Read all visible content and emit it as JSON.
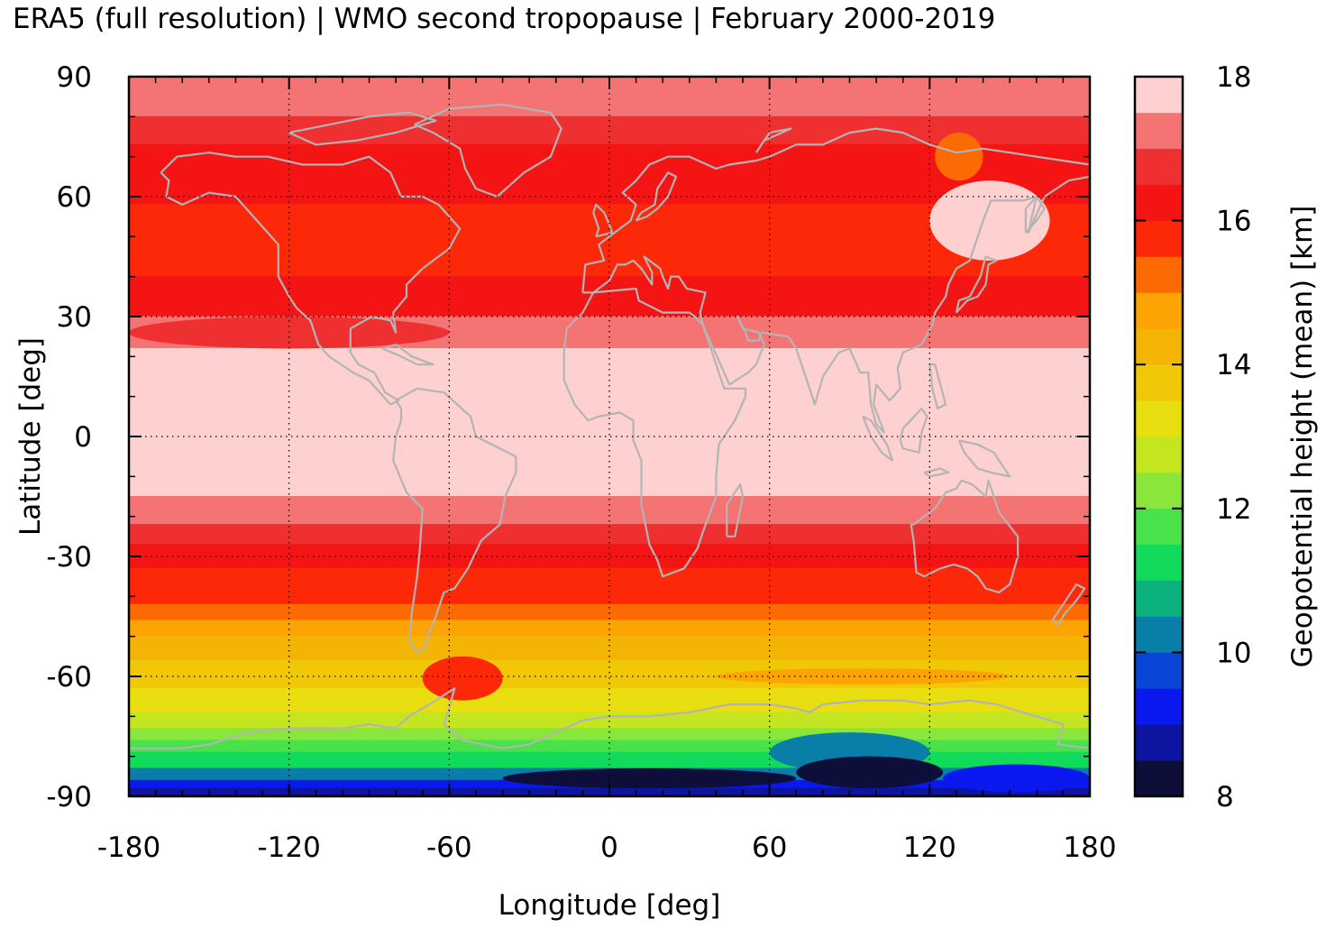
{
  "title": "ERA5 (full resolution) | WMO second tropopause | February 2000-2019",
  "map": {
    "x_label": "Longitude [deg]",
    "y_label": "Latitude [deg]",
    "x_ticks": [
      -180,
      -120,
      -60,
      0,
      60,
      120,
      180
    ],
    "y_ticks": [
      90,
      60,
      30,
      0,
      -30,
      -60,
      -90
    ],
    "x_tick_labels": [
      "-180",
      "-120",
      "-60",
      "0",
      "60",
      "120",
      "180"
    ],
    "y_tick_labels": [
      "90",
      "60",
      "30",
      "0",
      "-30",
      "-60",
      "-90"
    ],
    "x_range": [
      -180,
      180
    ],
    "y_range": [
      -90,
      90
    ],
    "gridlines": "dotted",
    "coastline_color": "#b4b4b4",
    "zonal_bands": [
      {
        "lat_from": 90,
        "lat_to": 80,
        "value": 17.25
      },
      {
        "lat_from": 80,
        "lat_to": 73,
        "value": 16.75
      },
      {
        "lat_from": 73,
        "lat_to": 58,
        "value": 16.25
      },
      {
        "lat_from": 58,
        "lat_to": 40,
        "value": 15.75
      },
      {
        "lat_from": 40,
        "lat_to": 30,
        "value": 16.25
      },
      {
        "lat_from": 30,
        "lat_to": 22,
        "value": 17.25
      },
      {
        "lat_from": 22,
        "lat_to": -15,
        "value": 17.75
      },
      {
        "lat_from": -15,
        "lat_to": -22,
        "value": 17.25
      },
      {
        "lat_from": -22,
        "lat_to": -27,
        "value": 16.75
      },
      {
        "lat_from": -27,
        "lat_to": -33,
        "value": 16.25
      },
      {
        "lat_from": -33,
        "lat_to": -42,
        "value": 15.75
      },
      {
        "lat_from": -42,
        "lat_to": -46,
        "value": 15.25
      },
      {
        "lat_from": -46,
        "lat_to": -50,
        "value": 14.75
      },
      {
        "lat_from": -50,
        "lat_to": -56,
        "value": 14.25
      },
      {
        "lat_from": -56,
        "lat_to": -63,
        "value": 13.75
      },
      {
        "lat_from": -63,
        "lat_to": -69,
        "value": 13.25
      },
      {
        "lat_from": -69,
        "lat_to": -73,
        "value": 12.75
      },
      {
        "lat_from": -73,
        "lat_to": -76,
        "value": 12.25
      },
      {
        "lat_from": -76,
        "lat_to": -79,
        "value": 11.75
      },
      {
        "lat_from": -79,
        "lat_to": -83,
        "value": 11.25
      },
      {
        "lat_from": -83,
        "lat_to": -86,
        "value": 10.25
      },
      {
        "lat_from": -86,
        "lat_to": -88,
        "value": 9.25
      },
      {
        "lat_from": -88,
        "lat_to": -90,
        "value": 8.75
      }
    ],
    "regional_features": [
      {
        "lon_from": 120,
        "lon_to": 165,
        "lat_from": 64,
        "lat_to": 44,
        "value": 17.75
      },
      {
        "lon_from": 122,
        "lon_to": 140,
        "lat_from": 76,
        "lat_to": 64,
        "value": 15.25
      },
      {
        "lon_from": -180,
        "lon_to": -60,
        "lat_from": 30,
        "lat_to": 22,
        "value": 16.75
      },
      {
        "lon_from": 40,
        "lon_to": 150,
        "lat_from": -58,
        "lat_to": -62,
        "value": 14.75
      },
      {
        "lon_from": -70,
        "lon_to": -40,
        "lat_from": -55,
        "lat_to": -66,
        "value": 15.75
      },
      {
        "lon_from": 60,
        "lon_to": 120,
        "lat_from": -74,
        "lat_to": -84,
        "value": 10.25
      },
      {
        "lon_from": 70,
        "lon_to": 125,
        "lat_from": -80,
        "lat_to": -88,
        "value": 8.25
      },
      {
        "lon_from": -40,
        "lon_to": 70,
        "lat_from": -83,
        "lat_to": -88,
        "value": 8.25
      },
      {
        "lon_from": 125,
        "lon_to": 180,
        "lat_from": -82,
        "lat_to": -89,
        "value": 9.25
      }
    ]
  },
  "colorbar": {
    "label": "Geopotential height (mean) [km]",
    "range": [
      8,
      18
    ],
    "tick_values": [
      8,
      10,
      12,
      14,
      16,
      18
    ],
    "tick_labels": [
      "8",
      "10",
      "12",
      "14",
      "16",
      "18"
    ],
    "colors": [
      "#0d0f3a",
      "#0d14a0",
      "#0a18f0",
      "#0a46d6",
      "#087ea8",
      "#0bb27e",
      "#12da5a",
      "#4ae24a",
      "#8ae63a",
      "#c4e620",
      "#e8de10",
      "#f0c808",
      "#f4b406",
      "#fca404",
      "#fc6a04",
      "#fc2808",
      "#f41414",
      "#ee3030",
      "#f47474",
      "#ffd0d0"
    ]
  },
  "chart_data": {
    "type": "heatmap",
    "title": "ERA5 (full resolution) | WMO second tropopause | February 2000-2019",
    "xlabel": "Longitude [deg]",
    "ylabel": "Latitude [deg]",
    "xlim": [
      -180,
      180
    ],
    "ylim": [
      -90,
      90
    ],
    "x_ticks": [
      -180,
      -120,
      -60,
      0,
      60,
      120,
      180
    ],
    "y_ticks": [
      90,
      60,
      30,
      0,
      -30,
      -60,
      -90
    ],
    "colorbar_label": "Geopotential height (mean) [km]",
    "colorbar_range": [
      8,
      18
    ],
    "colorbar_ticks": [
      8,
      10,
      12,
      14,
      16,
      18
    ],
    "zonal_profile_km": [
      {
        "lat": 85,
        "value": 17.25
      },
      {
        "lat": 75,
        "value": 16.75
      },
      {
        "lat": 60,
        "value": 16.25
      },
      {
        "lat": 45,
        "value": 15.75
      },
      {
        "lat": 35,
        "value": 16.25
      },
      {
        "lat": 25,
        "value": 17.25
      },
      {
        "lat": 0,
        "value": 17.75
      },
      {
        "lat": -20,
        "value": 17.25
      },
      {
        "lat": -25,
        "value": 16.75
      },
      {
        "lat": -30,
        "value": 16.25
      },
      {
        "lat": -38,
        "value": 15.75
      },
      {
        "lat": -45,
        "value": 15.0
      },
      {
        "lat": -55,
        "value": 14.25
      },
      {
        "lat": -65,
        "value": 13.5
      },
      {
        "lat": -72,
        "value": 12.75
      },
      {
        "lat": -78,
        "value": 11.75
      },
      {
        "lat": -84,
        "value": 10.25
      },
      {
        "lat": -89,
        "value": 8.75
      }
    ],
    "grid": true,
    "legend": "colorbar right"
  }
}
